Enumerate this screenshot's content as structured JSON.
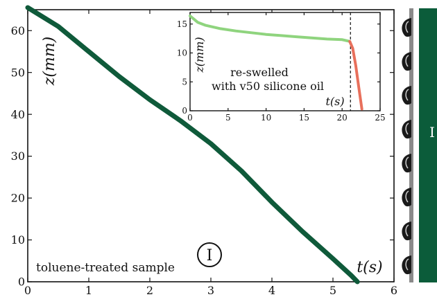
{
  "chart_data": [
    {
      "type": "line",
      "xlabel": "t(s)",
      "ylabel": "z(mm)",
      "xlim": [
        0,
        6
      ],
      "ylim": [
        0,
        65
      ],
      "xticks": [
        "0",
        "1",
        "2",
        "3",
        "4",
        "5",
        "6"
      ],
      "yticks": [
        "0",
        "10",
        "20",
        "30",
        "40",
        "50",
        "60"
      ],
      "grid": false,
      "annotations": [
        "toluene-treated sample",
        "I"
      ],
      "colors": {
        "main": "#0f5a3a"
      },
      "series": [
        {
          "x": [
            0,
            0.5,
            1.0,
            1.5,
            2.0,
            2.5,
            3.0,
            3.5,
            4.0,
            4.5,
            5.0,
            5.3,
            5.4
          ],
          "y": [
            65.5,
            61,
            55,
            49,
            43.5,
            38.5,
            33,
            26.5,
            19,
            12,
            5.5,
            1.5,
            0
          ]
        }
      ]
    },
    {
      "type": "line",
      "xlabel": "t(s)",
      "ylabel": "z(mm)",
      "xlim": [
        0,
        25
      ],
      "ylim": [
        0,
        17
      ],
      "xticks": [
        "0",
        "5",
        "10",
        "15",
        "20",
        "25"
      ],
      "yticks": [
        "0",
        "5",
        "10",
        "15"
      ],
      "grid": false,
      "annotations": [
        "re-swelled",
        "with v50 silicone oil"
      ],
      "vline_x": 21.1,
      "colors": {
        "slow": "#8fd47e",
        "fast": "#e8705c"
      },
      "series": [
        {
          "x": [
            0,
            1,
            2,
            4,
            6,
            8,
            10,
            12,
            14,
            16,
            18,
            20,
            21.0
          ],
          "y": [
            16.4,
            15.3,
            14.8,
            14.2,
            13.8,
            13.5,
            13.2,
            13.0,
            12.8,
            12.6,
            12.4,
            12.3,
            12.0
          ]
        },
        {
          "x": [
            21.0,
            21.4,
            21.8,
            22.2,
            22.6
          ],
          "y": [
            12.0,
            10.8,
            7.8,
            4.0,
            0.3
          ]
        }
      ]
    }
  ],
  "side_image": {
    "label": "I",
    "colors": {
      "bar": "#0b5c3a",
      "rod": "#8a8a8a",
      "blob": "#1a1a1a"
    }
  }
}
